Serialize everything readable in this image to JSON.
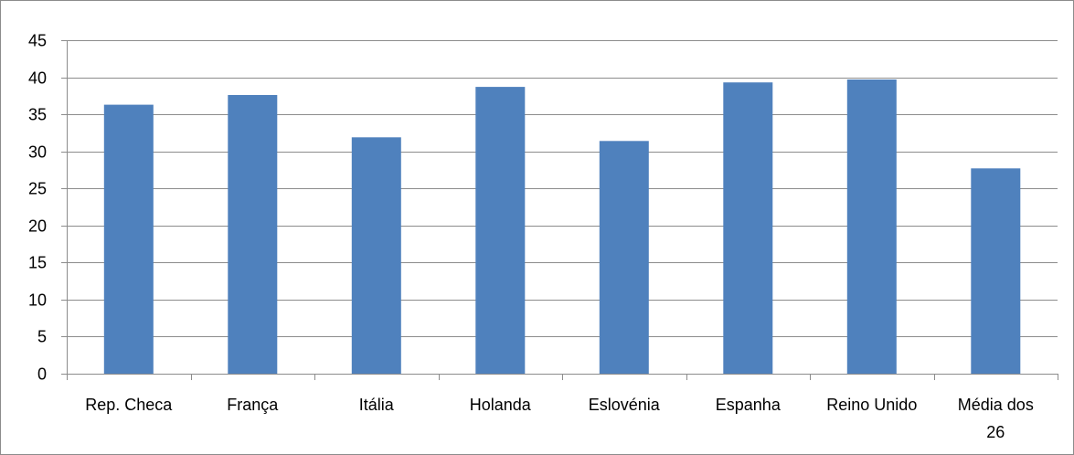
{
  "chart_data": {
    "type": "bar",
    "categories": [
      "Rep. Checa",
      "França",
      "Itália",
      "Holanda",
      "Eslovénia",
      "Espanha",
      "Reino Unido",
      "Média dos 26"
    ],
    "category_lines": [
      [
        "Rep. Checa"
      ],
      [
        "França"
      ],
      [
        "Itália"
      ],
      [
        "Holanda"
      ],
      [
        "Eslovénia"
      ],
      [
        "Espanha"
      ],
      [
        "Reino Unido"
      ],
      [
        "Média dos",
        "26"
      ]
    ],
    "values": [
      36.3,
      37.6,
      31.9,
      38.7,
      31.4,
      39.3,
      39.7,
      27.7
    ],
    "title": "",
    "xlabel": "",
    "ylabel": "",
    "ylim": [
      0,
      45
    ],
    "yticks": [
      0,
      5,
      10,
      15,
      20,
      25,
      30,
      35,
      40,
      45
    ],
    "grid": true,
    "legend": "none",
    "bar_color": "#4f81bd",
    "grid_color": "#8c8c8c"
  }
}
